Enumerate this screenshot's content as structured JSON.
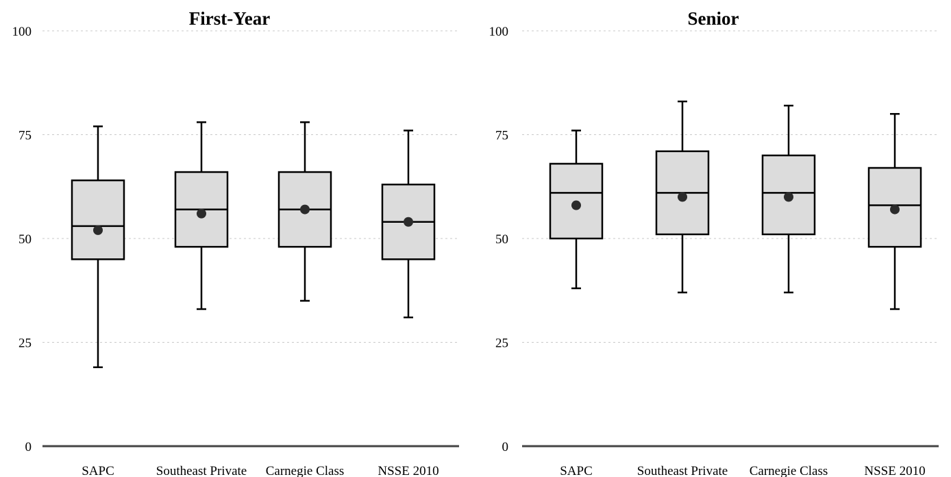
{
  "chart_data": [
    {
      "type": "box",
      "title": "First-Year",
      "categories": [
        "SAPC",
        "Southeast Private",
        "Carnegie Class",
        "NSSE 2010"
      ],
      "yticks": [
        "0",
        "25",
        "50",
        "75",
        "100"
      ],
      "ylim": [
        0,
        100
      ],
      "grid": true,
      "boxes": [
        {
          "whisker_low": 19,
          "q1": 45,
          "median": 53,
          "q3": 64,
          "whisker_high": 77,
          "mean": 52
        },
        {
          "whisker_low": 33,
          "q1": 48,
          "median": 57,
          "q3": 66,
          "whisker_high": 78,
          "mean": 56
        },
        {
          "whisker_low": 35,
          "q1": 48,
          "median": 57,
          "q3": 66,
          "whisker_high": 78,
          "mean": 57
        },
        {
          "whisker_low": 31,
          "q1": 45,
          "median": 54,
          "q3": 63,
          "whisker_high": 76,
          "mean": 54
        }
      ]
    },
    {
      "type": "box",
      "title": "Senior",
      "categories": [
        "SAPC",
        "Southeast Private",
        "Carnegie Class",
        "NSSE 2010"
      ],
      "yticks": [
        "0",
        "25",
        "50",
        "75",
        "100"
      ],
      "ylim": [
        0,
        100
      ],
      "grid": true,
      "boxes": [
        {
          "whisker_low": 38,
          "q1": 50,
          "median": 61,
          "q3": 68,
          "whisker_high": 76,
          "mean": 58
        },
        {
          "whisker_low": 37,
          "q1": 51,
          "median": 61,
          "q3": 71,
          "whisker_high": 83,
          "mean": 60
        },
        {
          "whisker_low": 37,
          "q1": 51,
          "median": 61,
          "q3": 70,
          "whisker_high": 82,
          "mean": 60
        },
        {
          "whisker_low": 33,
          "q1": 48,
          "median": 58,
          "q3": 67,
          "whisker_high": 80,
          "mean": 57
        }
      ]
    }
  ]
}
